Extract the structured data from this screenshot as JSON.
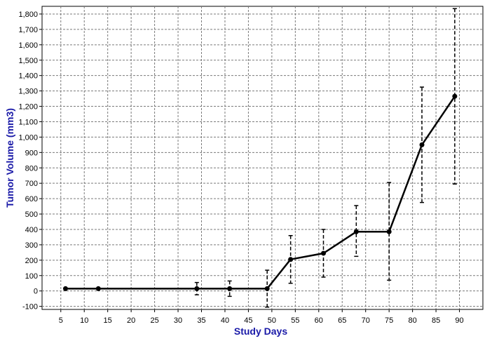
{
  "chart_data": {
    "type": "line",
    "title": "",
    "xlabel": "Study Days",
    "ylabel": "Tumor Volume (mm3)",
    "xlim": [
      1,
      95
    ],
    "ylim": [
      -120,
      1850
    ],
    "x_ticks": [
      5,
      10,
      15,
      20,
      25,
      30,
      35,
      40,
      45,
      50,
      55,
      60,
      65,
      70,
      75,
      80,
      85,
      90
    ],
    "y_ticks": [
      -100,
      0,
      100,
      200,
      300,
      400,
      500,
      600,
      700,
      800,
      900,
      1000,
      1100,
      1200,
      1300,
      1400,
      1500,
      1600,
      1700,
      1800
    ],
    "y_tick_labels": [
      "-100",
      "0",
      "100",
      "200",
      "300",
      "400",
      "500",
      "600",
      "700",
      "800",
      "900",
      "1,000",
      "1,100",
      "1,200",
      "1,300",
      "1,400",
      "1,500",
      "1,600",
      "1,700",
      "1,800"
    ],
    "grid": true,
    "series": [
      {
        "color": "#000000",
        "points": [
          {
            "x": 6,
            "y": 15,
            "low": 15,
            "high": 15
          },
          {
            "x": 13,
            "y": 15,
            "low": 15,
            "high": 15
          },
          {
            "x": 34,
            "y": 15,
            "low": -25,
            "high": 55
          },
          {
            "x": 41,
            "y": 15,
            "low": -35,
            "high": 65
          },
          {
            "x": 49,
            "y": 15,
            "low": -105,
            "high": 135
          },
          {
            "x": 54,
            "y": 205,
            "low": 50,
            "high": 360
          },
          {
            "x": 61,
            "y": 245,
            "low": 90,
            "high": 400
          },
          {
            "x": 68,
            "y": 385,
            "low": 225,
            "high": 555
          },
          {
            "x": 75,
            "y": 385,
            "low": 70,
            "high": 705
          },
          {
            "x": 82,
            "y": 950,
            "low": 575,
            "high": 1325
          },
          {
            "x": 89,
            "y": 1265,
            "low": 695,
            "high": 1835
          }
        ]
      }
    ]
  }
}
